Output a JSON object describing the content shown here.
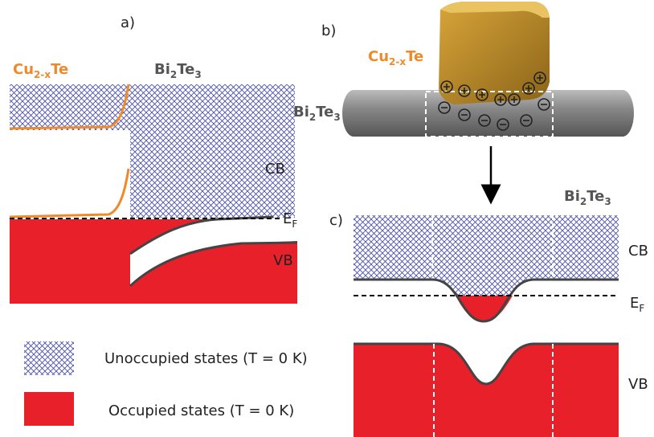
{
  "panel_a": {
    "label": "a)",
    "left_material": {
      "base": "Cu",
      "sub": "2-x",
      "rest": "Te"
    },
    "right_material": {
      "base1": "Bi",
      "sub1": "2",
      "base2": "Te",
      "sub2": "3"
    },
    "cb": "CB",
    "ef": {
      "base": "E",
      "sub": "F"
    },
    "vb": "VB"
  },
  "panel_b": {
    "label": "b)",
    "top_material": {
      "base": "Cu",
      "sub": "2-x",
      "rest": "Te"
    },
    "wire_material": {
      "base1": "Bi",
      "sub1": "2",
      "base2": "Te",
      "sub2": "3"
    }
  },
  "panel_c": {
    "label": "c)",
    "material": {
      "base1": "Bi",
      "sub1": "2",
      "base2": "Te",
      "sub2": "3"
    },
    "cb": "CB",
    "ef": {
      "base": "E",
      "sub": "F"
    },
    "vb": "VB"
  },
  "legend": {
    "unoccupied": "Unoccupied states (T = 0 K)",
    "occupied": "Occupied states (T = 0 K)"
  }
}
